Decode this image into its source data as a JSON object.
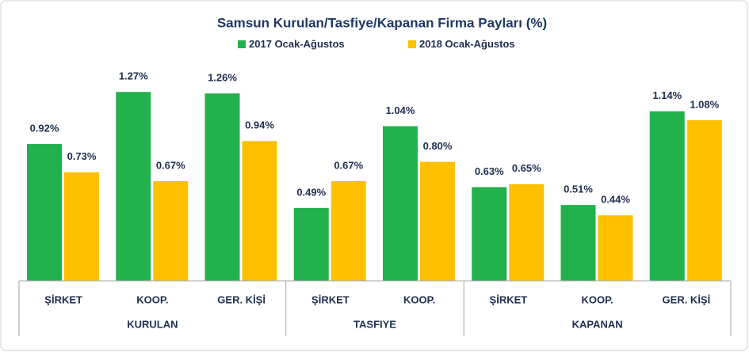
{
  "chart_data": {
    "type": "bar",
    "title": "Samsun Kurulan/Tasfiye/Kapanan Firma Payları (%)",
    "groups": [
      {
        "name": "KURULAN",
        "categories": [
          "ŞİRKET",
          "KOOP.",
          "GER. KİŞİ"
        ]
      },
      {
        "name": "TASFIYE",
        "categories": [
          "ŞİRKET",
          "KOOP."
        ]
      },
      {
        "name": "KAPANAN",
        "categories": [
          "ŞİRKET",
          "KOOP.",
          "GER. KİŞİ"
        ]
      }
    ],
    "series": [
      {
        "name": "2017 Ocak-Ağustos",
        "color": "#22b14c",
        "values": [
          0.92,
          1.27,
          1.26,
          0.49,
          1.04,
          0.63,
          0.51,
          1.14
        ],
        "value_labels": [
          "0.92%",
          "1.27%",
          "1.26%",
          "0.49%",
          "1.04%",
          "0.63%",
          "0.51%",
          "1.14%"
        ]
      },
      {
        "name": "2018 Ocak-Ağustos",
        "color": "#ffc000",
        "values": [
          0.73,
          0.67,
          0.94,
          0.67,
          0.8,
          0.65,
          0.44,
          1.08
        ],
        "value_labels": [
          "0.73%",
          "0.67%",
          "0.94%",
          "0.67%",
          "0.80%",
          "0.65%",
          "0.44%",
          "1.08%"
        ]
      }
    ],
    "legend": "top"
  }
}
